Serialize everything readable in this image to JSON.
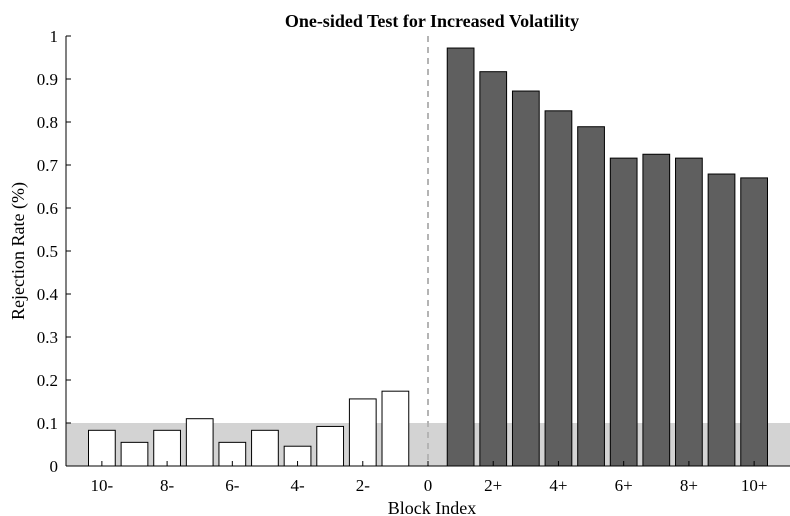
{
  "chart_data": {
    "type": "bar",
    "title": "One-sided Test for Increased Volatility",
    "xlabel": "Block Index",
    "ylabel": "Rejection Rate (%)",
    "ylim": [
      0,
      1
    ],
    "yticks": [
      "0",
      "0.1",
      "0.2",
      "0.3",
      "0.4",
      "0.5",
      "0.6",
      "0.7",
      "0.8",
      "0.9",
      "1"
    ],
    "x_positions": [
      -10,
      -9,
      -8,
      -7,
      -6,
      -5,
      -4,
      -3,
      -2,
      -1,
      1,
      2,
      3,
      4,
      5,
      6,
      7,
      8,
      9,
      10
    ],
    "values": [
      0.083,
      0.055,
      0.083,
      0.11,
      0.055,
      0.083,
      0.046,
      0.092,
      0.156,
      0.174,
      0.972,
      0.917,
      0.872,
      0.826,
      0.789,
      0.716,
      0.725,
      0.716,
      0.679,
      0.67
    ],
    "bar_fill": [
      "#ffffff",
      "#ffffff",
      "#ffffff",
      "#ffffff",
      "#ffffff",
      "#ffffff",
      "#ffffff",
      "#ffffff",
      "#ffffff",
      "#ffffff",
      "#5f5f5f",
      "#5f5f5f",
      "#5f5f5f",
      "#5f5f5f",
      "#5f5f5f",
      "#5f5f5f",
      "#5f5f5f",
      "#5f5f5f",
      "#5f5f5f",
      "#5f5f5f"
    ],
    "xticks": [
      {
        "pos": -10,
        "label": "10-"
      },
      {
        "pos": -8,
        "label": "8-"
      },
      {
        "pos": -6,
        "label": "6-"
      },
      {
        "pos": -4,
        "label": "4-"
      },
      {
        "pos": -2,
        "label": "2-"
      },
      {
        "pos": 0,
        "label": "0"
      },
      {
        "pos": 2,
        "label": "2+"
      },
      {
        "pos": 4,
        "label": "4+"
      },
      {
        "pos": 6,
        "label": "6+"
      },
      {
        "pos": 8,
        "label": "8+"
      },
      {
        "pos": 10,
        "label": "10+"
      }
    ],
    "reference_band": {
      "from": 0,
      "to": 0.1,
      "color": "#d3d3d3"
    },
    "reference_line": {
      "x": 0,
      "style": "dashed",
      "color": "#b4b4b4"
    },
    "bar_edge_color": "#000000",
    "grid": false,
    "legend": "none"
  }
}
